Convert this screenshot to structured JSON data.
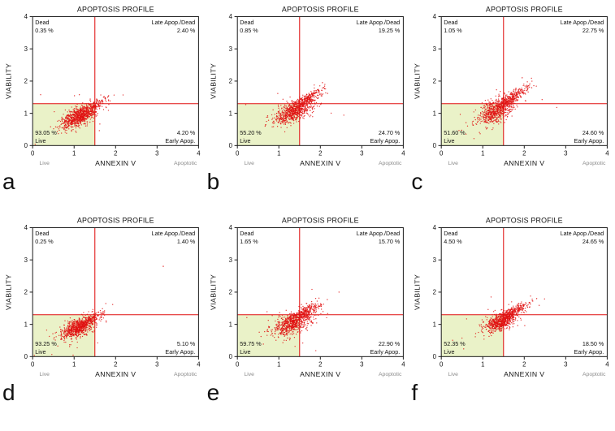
{
  "colors": {
    "gate_line": "#e01010",
    "dot": "#e01212",
    "quadrant_fill": "#eaf2c8",
    "plot_border": "#222222",
    "zone_label_gray": "#8a8a8a"
  },
  "chart_data": {
    "type": "scatter",
    "title": "APOPTOSIS PROFILE",
    "xlabel": "ANNEXIN V",
    "ylabel": "VIABILITY",
    "xlim": [
      0,
      4
    ],
    "ylim": [
      0,
      4
    ],
    "x_ticks": [
      0,
      1,
      2,
      3,
      4
    ],
    "y_ticks": [
      0,
      1,
      2,
      3,
      4
    ],
    "grid": false,
    "x_axis_zone_labels": {
      "left": "Live",
      "right": "Apoptotic"
    },
    "gates": {
      "x_line": 1.5,
      "y_line": 1.3
    },
    "quadrant_labels": {
      "top_left": "Dead",
      "top_right": "Late Apop./Dead",
      "bottom_left": "Live",
      "bottom_right": "Early Apop."
    },
    "panels": [
      {
        "letter": "a",
        "dead_pct": "0.35 %",
        "late_pct": "2.40 %",
        "live_pct": "93.05 %",
        "early_pct": "4.20 %",
        "cluster_model": [
          {
            "cx": 1.12,
            "cy": 0.9,
            "sx": 0.2,
            "sy": 0.17,
            "rho": 0.55,
            "n": 750
          },
          {
            "cx": 1.45,
            "cy": 1.2,
            "sx": 0.18,
            "sy": 0.15,
            "rho": 0.8,
            "n": 180
          },
          {
            "cx": 1.15,
            "cy": 0.95,
            "sx": 0.55,
            "sy": 0.4,
            "rho": 0.5,
            "n": 28
          }
        ],
        "outliers": []
      },
      {
        "letter": "b",
        "dead_pct": "0.85 %",
        "late_pct": "19.25 %",
        "live_pct": "55.20 %",
        "early_pct": "24.70 %",
        "cluster_model": [
          {
            "cx": 1.35,
            "cy": 1.05,
            "sx": 0.22,
            "sy": 0.18,
            "rho": 0.6,
            "n": 650
          },
          {
            "cx": 1.7,
            "cy": 1.45,
            "sx": 0.2,
            "sy": 0.16,
            "rho": 0.85,
            "n": 260
          },
          {
            "cx": 1.4,
            "cy": 1.1,
            "sx": 0.55,
            "sy": 0.42,
            "rho": 0.5,
            "n": 30
          }
        ],
        "outliers": [
          [
            2.05,
            1.95
          ]
        ]
      },
      {
        "letter": "c",
        "dead_pct": "1.05 %",
        "late_pct": "22.75 %",
        "live_pct": "51.60 %",
        "early_pct": "24.60 %",
        "cluster_model": [
          {
            "cx": 1.35,
            "cy": 1.1,
            "sx": 0.22,
            "sy": 0.2,
            "rho": 0.6,
            "n": 650
          },
          {
            "cx": 1.7,
            "cy": 1.5,
            "sx": 0.22,
            "sy": 0.18,
            "rho": 0.85,
            "n": 260
          },
          {
            "cx": 1.35,
            "cy": 1.1,
            "sx": 0.55,
            "sy": 0.42,
            "rho": 0.5,
            "n": 30
          }
        ],
        "outliers": [
          [
            1.95,
            2.1
          ]
        ]
      },
      {
        "letter": "d",
        "dead_pct": "0.25 %",
        "late_pct": "1.40 %",
        "live_pct": "93.25 %",
        "early_pct": "5.10 %",
        "cluster_model": [
          {
            "cx": 1.1,
            "cy": 0.9,
            "sx": 0.2,
            "sy": 0.17,
            "rho": 0.55,
            "n": 750
          },
          {
            "cx": 1.4,
            "cy": 1.15,
            "sx": 0.16,
            "sy": 0.14,
            "rho": 0.8,
            "n": 160
          },
          {
            "cx": 1.1,
            "cy": 0.9,
            "sx": 0.5,
            "sy": 0.38,
            "rho": 0.5,
            "n": 25
          }
        ],
        "outliers": [
          [
            3.15,
            2.8
          ]
        ]
      },
      {
        "letter": "e",
        "dead_pct": "1.65 %",
        "late_pct": "15.70 %",
        "live_pct": "59.75 %",
        "early_pct": "22.90 %",
        "cluster_model": [
          {
            "cx": 1.35,
            "cy": 1.05,
            "sx": 0.24,
            "sy": 0.2,
            "rho": 0.6,
            "n": 650
          },
          {
            "cx": 1.65,
            "cy": 1.4,
            "sx": 0.2,
            "sy": 0.16,
            "rho": 0.85,
            "n": 230
          },
          {
            "cx": 1.35,
            "cy": 1.05,
            "sx": 0.6,
            "sy": 0.45,
            "rho": 0.5,
            "n": 32
          }
        ],
        "outliers": [
          [
            2.45,
            2.0
          ]
        ]
      },
      {
        "letter": "f",
        "dead_pct": "4.50 %",
        "late_pct": "24.65 %",
        "live_pct": "52.35 %",
        "early_pct": "18.50 %",
        "cluster_model": [
          {
            "cx": 1.45,
            "cy": 1.1,
            "sx": 0.2,
            "sy": 0.16,
            "rho": 0.6,
            "n": 650
          },
          {
            "cx": 1.75,
            "cy": 1.4,
            "sx": 0.18,
            "sy": 0.14,
            "rho": 0.85,
            "n": 230
          },
          {
            "cx": 1.45,
            "cy": 1.1,
            "sx": 0.55,
            "sy": 0.4,
            "rho": 0.5,
            "n": 28
          }
        ],
        "outliers": [
          [
            2.3,
            1.8
          ]
        ]
      }
    ]
  }
}
